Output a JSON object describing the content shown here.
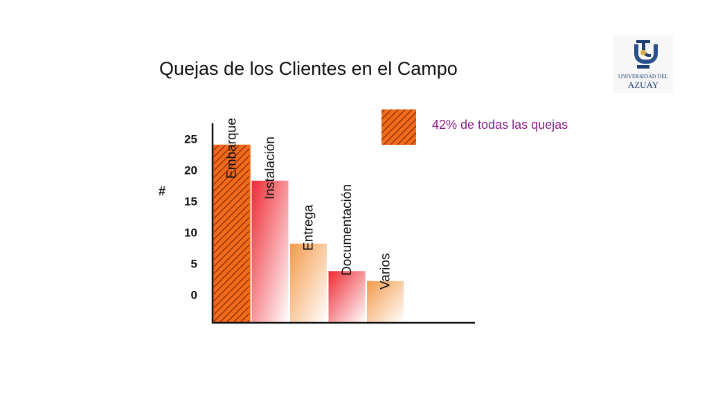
{
  "chart_data": {
    "type": "bar",
    "title": "Quejas de los Clientes en el Campo",
    "ylabel": "#",
    "xlabel": "",
    "categories": [
      "Embarque",
      "Instalación",
      "Entrega",
      "Documentación",
      "Varios"
    ],
    "values": [
      24,
      18.3,
      8.2,
      3.8,
      2.2
    ],
    "yticks": [
      0,
      5,
      10,
      15,
      20,
      25
    ],
    "ylim": [
      -4.5,
      27.5
    ],
    "grid": false,
    "highlight_index": 0,
    "annotation": "42% de todas las quejas"
  },
  "colors": {
    "hatch_fill": "#f26a1b",
    "hatch_line": "#7a1f00",
    "red": "#ee2a34",
    "orange": "#f39a4a",
    "annotation_text": "#8b1a8b"
  },
  "logo": {
    "line1": "UNIVERSIDAD DEL",
    "line2": "AZUAY"
  }
}
